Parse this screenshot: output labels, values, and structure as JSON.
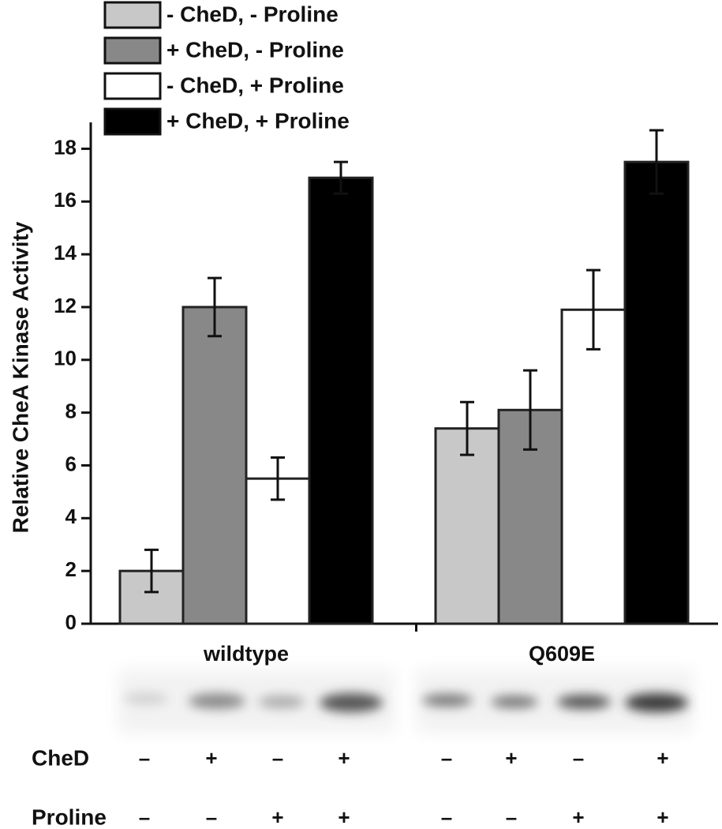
{
  "chart_data": {
    "type": "bar",
    "y_label": "Relative CheA Kinase Activity",
    "categories": [
      "wildtype",
      "Q609E"
    ],
    "series": [
      {
        "name": "- CheD, - Proline",
        "color": "#c8c8c8",
        "values": [
          2.0,
          7.4
        ],
        "errors": [
          0.8,
          1.0
        ]
      },
      {
        "name": "+ CheD, - Proline",
        "color": "#888888",
        "values": [
          12.0,
          8.1
        ],
        "errors": [
          1.1,
          1.5
        ]
      },
      {
        "name": "- CheD, + Proline",
        "color": "#ffffff",
        "values": [
          5.5,
          11.9
        ],
        "errors": [
          0.8,
          1.5
        ]
      },
      {
        "name": "+ CheD, + Proline",
        "color": "#000000",
        "values": [
          16.9,
          17.5
        ],
        "errors": [
          0.6,
          1.2
        ]
      }
    ],
    "ylim": [
      0,
      19
    ],
    "yticks": [
      0,
      2,
      4,
      6,
      8,
      10,
      12,
      14,
      16,
      18
    ]
  },
  "gel": {
    "rows": [
      {
        "label": "CheD",
        "signs": [
          "–",
          "+",
          "–",
          "+",
          "–",
          "+",
          "–",
          "+"
        ]
      },
      {
        "label": "Proline",
        "signs": [
          "–",
          "–",
          "+",
          "+",
          "–",
          "–",
          "+",
          "+"
        ]
      }
    ]
  }
}
